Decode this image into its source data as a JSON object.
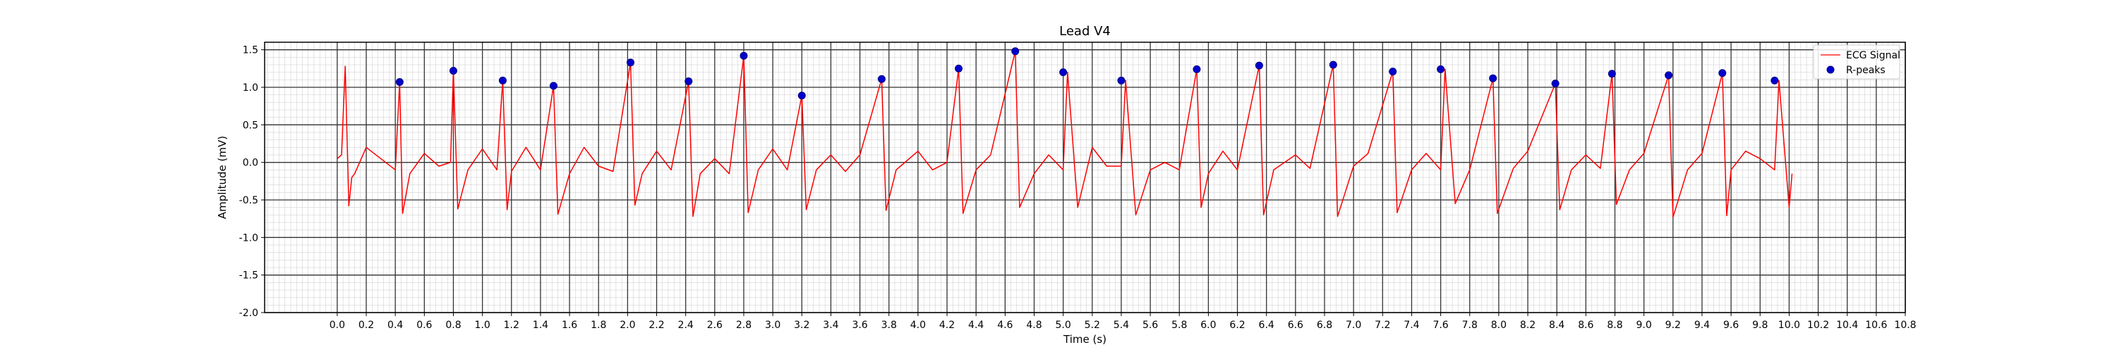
{
  "chart_data": {
    "type": "line",
    "title": "Lead V4",
    "xlabel": "Time (s)",
    "ylabel": "Amplitude (mV)",
    "xlim": [
      -0.5,
      10.8
    ],
    "ylim": [
      -2.0,
      1.6
    ],
    "xticks": [
      0.0,
      0.2,
      0.4,
      0.6,
      0.8,
      1.0,
      1.2,
      1.4,
      1.6,
      1.8,
      2.0,
      2.2,
      2.4,
      2.6,
      2.8,
      3.0,
      3.2,
      3.4,
      3.6,
      3.8,
      4.0,
      4.2,
      4.4,
      4.6,
      4.8,
      5.0,
      5.2,
      5.4,
      5.6,
      5.8,
      6.0,
      6.2,
      6.4,
      6.6,
      6.8,
      7.0,
      7.2,
      7.4,
      7.6,
      7.8,
      8.0,
      8.2,
      8.4,
      8.6,
      8.8,
      9.0,
      9.2,
      9.4,
      9.6,
      9.8,
      10.0,
      10.2,
      10.4,
      10.6,
      10.8
    ],
    "yticks": [
      -2.0,
      -1.5,
      -1.0,
      -0.5,
      0.0,
      0.5,
      1.0,
      1.5
    ],
    "grid": true,
    "legend": {
      "placement": "top-right",
      "entries": [
        "ECG Signal",
        "R-peaks"
      ]
    },
    "colors": {
      "signal": "#ff0000",
      "peaks": "#0000cd",
      "peak_edge": "#000080",
      "grid_major": "#333333",
      "grid_minor": "#c8c8c8"
    },
    "series": [
      {
        "name": "ECG Signal",
        "x": [
          0.0,
          0.03,
          0.055,
          0.08,
          0.1,
          0.12,
          0.2,
          0.3,
          0.4,
          0.43,
          0.45,
          0.5,
          0.6,
          0.7,
          0.78,
          0.8,
          0.83,
          0.9,
          1.0,
          1.1,
          1.14,
          1.17,
          1.2,
          1.3,
          1.4,
          1.49,
          1.52,
          1.6,
          1.7,
          1.8,
          1.9,
          2.02,
          2.05,
          2.1,
          2.2,
          2.3,
          2.42,
          2.45,
          2.5,
          2.6,
          2.7,
          2.8,
          2.83,
          2.9,
          3.0,
          3.1,
          3.2,
          3.23,
          3.3,
          3.4,
          3.5,
          3.6,
          3.75,
          3.78,
          3.85,
          4.0,
          4.1,
          4.2,
          4.28,
          4.31,
          4.4,
          4.5,
          4.67,
          4.7,
          4.8,
          4.9,
          5.0,
          5.03,
          5.1,
          5.2,
          5.3,
          5.4,
          5.43,
          5.5,
          5.6,
          5.7,
          5.8,
          5.92,
          5.95,
          6.0,
          6.1,
          6.2,
          6.35,
          6.38,
          6.45,
          6.6,
          6.7,
          6.86,
          6.89,
          7.0,
          7.1,
          7.27,
          7.3,
          7.4,
          7.5,
          7.6,
          7.63,
          7.7,
          7.8,
          7.96,
          7.99,
          8.1,
          8.2,
          8.39,
          8.42,
          8.5,
          8.6,
          8.7,
          8.78,
          8.81,
          8.9,
          9.0,
          9.17,
          9.2,
          9.3,
          9.4,
          9.54,
          9.57,
          9.6,
          9.7,
          9.8,
          9.9,
          9.93,
          10.0,
          10.02
        ],
        "y": [
          0.05,
          0.1,
          1.28,
          -0.58,
          -0.2,
          -0.15,
          0.2,
          0.05,
          -0.1,
          1.07,
          -0.68,
          -0.15,
          0.12,
          -0.05,
          0.0,
          1.22,
          -0.62,
          -0.1,
          0.18,
          -0.1,
          1.09,
          -0.63,
          -0.12,
          0.2,
          -0.1,
          1.02,
          -0.69,
          -0.15,
          0.2,
          -0.05,
          -0.12,
          1.33,
          -0.57,
          -0.15,
          0.15,
          -0.1,
          1.08,
          -0.72,
          -0.15,
          0.05,
          -0.15,
          1.42,
          -0.67,
          -0.1,
          0.18,
          -0.1,
          0.89,
          -0.63,
          -0.1,
          0.1,
          -0.12,
          0.1,
          1.11,
          -0.64,
          -0.1,
          0.15,
          -0.1,
          0.0,
          1.25,
          -0.68,
          -0.1,
          0.1,
          1.48,
          -0.6,
          -0.15,
          0.1,
          -0.1,
          1.2,
          -0.6,
          0.2,
          -0.05,
          -0.05,
          1.09,
          -0.7,
          -0.1,
          0.0,
          -0.1,
          1.24,
          -0.6,
          -0.15,
          0.15,
          -0.1,
          1.29,
          -0.7,
          -0.1,
          0.1,
          -0.08,
          1.3,
          -0.72,
          -0.05,
          0.12,
          1.21,
          -0.67,
          -0.1,
          0.12,
          -0.1,
          1.24,
          -0.55,
          -0.1,
          1.12,
          -0.68,
          -0.08,
          0.15,
          1.05,
          -0.63,
          -0.1,
          0.1,
          -0.08,
          1.18,
          -0.56,
          -0.1,
          0.12,
          1.16,
          -0.73,
          -0.1,
          0.12,
          1.19,
          -0.71,
          -0.1,
          0.15,
          0.05,
          -0.1,
          1.09,
          -0.6,
          -0.15
        ]
      },
      {
        "name": "R-peaks",
        "x": [
          0.43,
          0.8,
          1.14,
          1.49,
          2.02,
          2.42,
          2.8,
          3.2,
          3.75,
          4.28,
          4.67,
          5.0,
          5.4,
          5.92,
          6.35,
          6.86,
          7.27,
          7.6,
          7.96,
          8.39,
          8.78,
          9.17,
          9.54,
          9.9
        ],
        "y": [
          1.07,
          1.22,
          1.09,
          1.02,
          1.33,
          1.08,
          1.42,
          0.89,
          1.11,
          1.25,
          1.48,
          1.2,
          1.09,
          1.24,
          1.29,
          1.3,
          1.21,
          1.24,
          1.12,
          1.05,
          1.18,
          1.16,
          1.19,
          1.09
        ]
      }
    ]
  }
}
